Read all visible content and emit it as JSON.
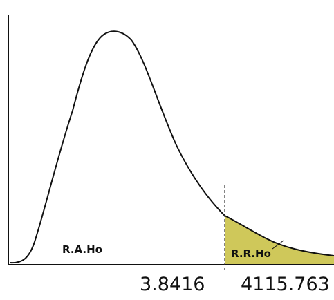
{
  "labels": {
    "acceptance_region": "R.A.Ho",
    "rejection_region": "R.R.Ho"
  },
  "values": {
    "critical_value": "3.8416",
    "test_statistic": "4115.763"
  },
  "colors": {
    "rejection_fill": "#cfc85a",
    "curve": "#111111",
    "axes": "#111111"
  }
}
